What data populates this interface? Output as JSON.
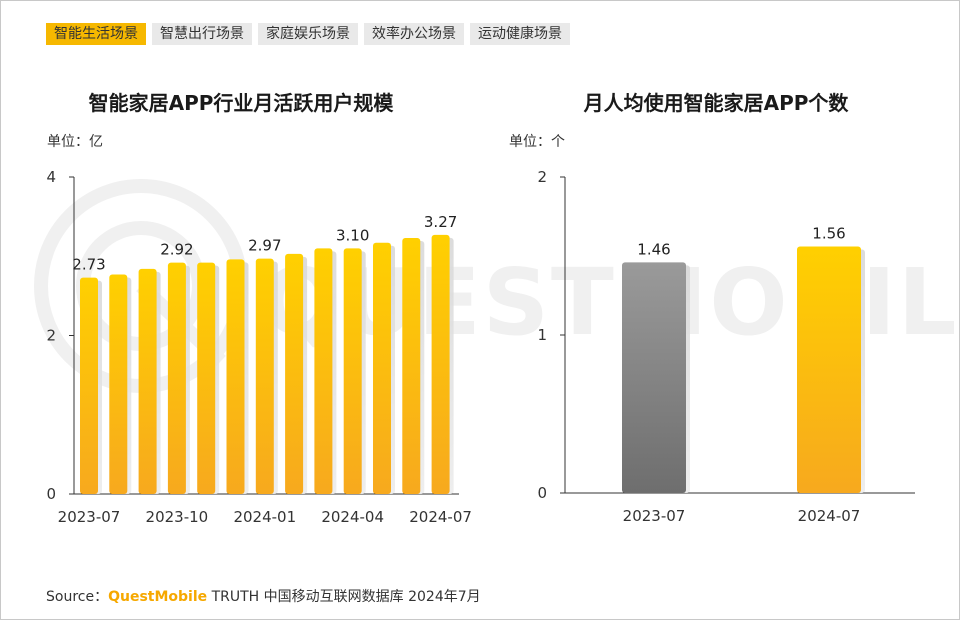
{
  "tabs": [
    {
      "label": "智能生活场景",
      "active": true
    },
    {
      "label": "智慧出行场景",
      "active": false
    },
    {
      "label": "家庭娱乐场景",
      "active": false
    },
    {
      "label": "效率办公场景",
      "active": false
    },
    {
      "label": "运动健康场景",
      "active": false
    }
  ],
  "watermark": {
    "text": "QUESTMOBILE"
  },
  "source": {
    "prefix": "Source：",
    "brand": "QuestMobile",
    "suffix": " TRUTH 中国移动互联网数据库 2024年7月"
  },
  "colors": {
    "accent": "#f6b800",
    "bar_yellow_top": "#ffd000",
    "bar_yellow_bottom": "#f7a91e",
    "bar_gray_top": "#9a9a9a",
    "bar_gray_bottom": "#6e6e6e",
    "watermark": "#f0f0f0"
  },
  "chart_data": [
    {
      "type": "bar",
      "title": "智能家居APP行业月活跃用户规模",
      "unit_label": "单位：亿",
      "categories": [
        "2023-07",
        "2023-08",
        "2023-09",
        "2023-10",
        "2023-11",
        "2023-12",
        "2024-01",
        "2024-02",
        "2024-03",
        "2024-04",
        "2024-05",
        "2024-06",
        "2024-07"
      ],
      "values": [
        2.73,
        2.77,
        2.84,
        2.92,
        2.92,
        2.96,
        2.97,
        3.03,
        3.1,
        3.1,
        3.17,
        3.23,
        3.27
      ],
      "value_labels": [
        {
          "index": 0,
          "text": "2.73"
        },
        {
          "index": 3,
          "text": "2.92"
        },
        {
          "index": 6,
          "text": "2.97"
        },
        {
          "index": 9,
          "text": "3.10"
        },
        {
          "index": 12,
          "text": "3.27"
        }
      ],
      "x_tick_labels": [
        {
          "index": 0,
          "text": "2023-07"
        },
        {
          "index": 3,
          "text": "2023-10"
        },
        {
          "index": 6,
          "text": "2024-01"
        },
        {
          "index": 9,
          "text": "2024-04"
        },
        {
          "index": 12,
          "text": "2024-07"
        }
      ],
      "y_ticks": [
        {
          "value": 0,
          "text": "0"
        },
        {
          "value": 2,
          "text": "2"
        },
        {
          "value": 4,
          "text": "4"
        }
      ],
      "ylim": [
        0,
        4
      ],
      "grid": false
    },
    {
      "type": "bar",
      "title": "月人均使用智能家居APP个数",
      "unit_label": "单位：个",
      "categories": [
        "2023-07",
        "2024-07"
      ],
      "values": [
        1.46,
        1.56
      ],
      "value_labels": [
        {
          "index": 0,
          "text": "1.46"
        },
        {
          "index": 1,
          "text": "1.56"
        }
      ],
      "x_tick_labels": [
        {
          "index": 0,
          "text": "2023-07"
        },
        {
          "index": 1,
          "text": "2024-07"
        }
      ],
      "bar_styles": [
        "gray",
        "yellow"
      ],
      "y_ticks": [
        {
          "value": 0,
          "text": "0"
        },
        {
          "value": 1,
          "text": "1"
        },
        {
          "value": 2,
          "text": "2"
        }
      ],
      "ylim": [
        0,
        2
      ],
      "grid": false
    }
  ]
}
